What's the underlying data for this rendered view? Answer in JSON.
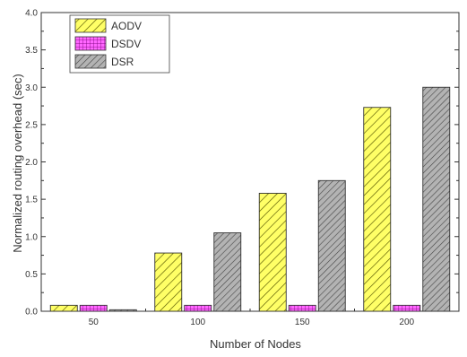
{
  "chart_data": {
    "type": "bar",
    "categories": [
      "50",
      "100",
      "150",
      "200"
    ],
    "series": [
      {
        "name": "AODV",
        "values": [
          0.08,
          0.78,
          1.58,
          2.73
        ],
        "color": "#ffff66",
        "pattern": "diagonal-hatch"
      },
      {
        "name": "DSDV",
        "values": [
          0.08,
          0.08,
          0.08,
          0.08
        ],
        "color": "#ff66ff",
        "pattern": "grid"
      },
      {
        "name": "DSR",
        "values": [
          0.02,
          1.05,
          1.75,
          3.0
        ],
        "color": "#b3b3b3",
        "pattern": "diagonal-hatch"
      }
    ],
    "xlabel": "Number of Nodes",
    "ylabel": "Normalized routing overhead (sec)",
    "ylim": [
      0,
      4.0
    ],
    "yticks": [
      "0.0",
      "0.5",
      "1.0",
      "1.5",
      "2.0",
      "2.5",
      "3.0",
      "3.5",
      "4.0"
    ],
    "legend_position": "top-left",
    "grid": false
  }
}
